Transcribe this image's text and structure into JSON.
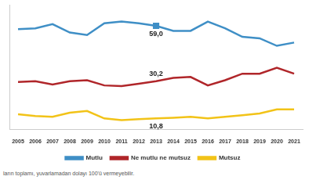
{
  "chart_data": {
    "type": "line",
    "categories": [
      "2005",
      "2006",
      "2007",
      "2008",
      "2009",
      "2010",
      "2011",
      "2012",
      "2013",
      "2014",
      "2015",
      "2016",
      "2017",
      "2018",
      "2019",
      "2020",
      "2021"
    ],
    "series": [
      {
        "name": "Mutlu",
        "color": "#3f8fc6",
        "marker": "square",
        "values": [
          57.3,
          57.7,
          59.9,
          55.5,
          54.2,
          60.3,
          61.2,
          60.3,
          59.0,
          56.4,
          56.4,
          61.2,
          57.7,
          53.3,
          52.5,
          48.6,
          50.3
        ],
        "value_labels": [
          null,
          null,
          null,
          null,
          null,
          null,
          null,
          null,
          "59,0",
          null,
          null,
          null,
          null,
          null,
          null,
          null,
          null
        ]
      },
      {
        "name": "Ne mutlu ne mutsuz",
        "color": "#b0262a",
        "marker": "none",
        "values": [
          29.8,
          30.2,
          28.5,
          30.2,
          30.7,
          28.0,
          27.6,
          28.9,
          30.2,
          31.9,
          32.4,
          28.0,
          30.7,
          34.1,
          34.1,
          37.2,
          34.1
        ],
        "value_labels": [
          null,
          null,
          null,
          null,
          null,
          null,
          null,
          null,
          "30,2",
          null,
          null,
          null,
          null,
          null,
          null,
          null,
          null
        ]
      },
      {
        "name": "Mutsuz",
        "color": "#f2c318",
        "marker": "none",
        "values": [
          13.0,
          12.1,
          11.7,
          13.8,
          14.7,
          10.8,
          9.9,
          10.4,
          10.8,
          11.2,
          11.7,
          10.8,
          11.7,
          12.5,
          13.4,
          15.5,
          15.5
        ],
        "value_labels": [
          null,
          null,
          null,
          null,
          null,
          null,
          null,
          null,
          "10,8",
          null,
          null,
          null,
          null,
          null,
          null,
          null,
          null
        ]
      }
    ],
    "ylim": [
      5,
      70
    ],
    "tick_labels": "x",
    "grid": false,
    "legend": "bottom",
    "data_labels": true,
    "note": "ların toplamı, yuvarlamadan dolayı 100'ü vermeyebilir."
  }
}
